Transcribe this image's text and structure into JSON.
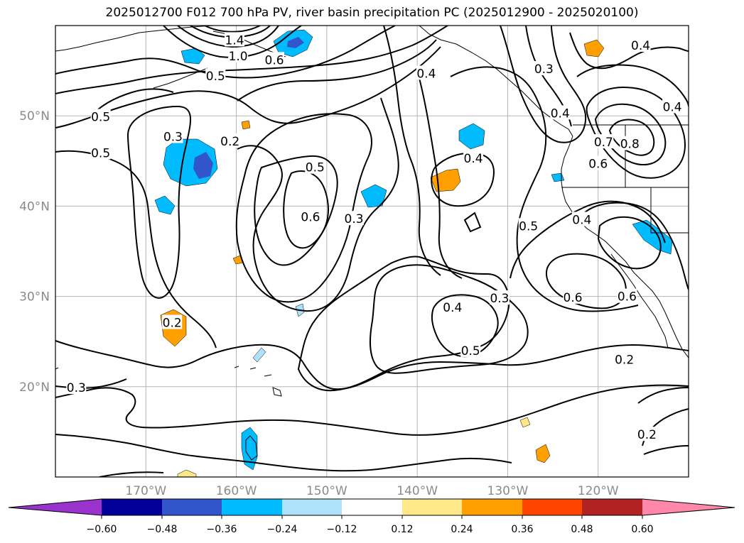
{
  "title": "2025012700 F012 700 hPa PV, river basin precipitation PC (2025012900 - 2025020100)",
  "map": {
    "lon_range": [
      -180,
      -110
    ],
    "lat_range": [
      10,
      60
    ],
    "gridlines": true,
    "lon_ticks": [
      {
        "lon": -170,
        "label": "170°W"
      },
      {
        "lon": -160,
        "label": "160°W"
      },
      {
        "lon": -150,
        "label": "150°W"
      },
      {
        "lon": -140,
        "label": "140°W"
      },
      {
        "lon": -130,
        "label": "130°W"
      },
      {
        "lon": -120,
        "label": "120°W"
      }
    ],
    "lat_ticks": [
      {
        "lat": 20,
        "label": "20°N"
      },
      {
        "lat": 30,
        "label": "30°N"
      },
      {
        "lat": 40,
        "label": "40°N"
      },
      {
        "lat": 50,
        "label": "50°N"
      }
    ],
    "contour_labels": [
      {
        "text": "1.4",
        "lon": -160.2,
        "lat": 58.4
      },
      {
        "text": "1.0",
        "lon": -159.8,
        "lat": 56.6
      },
      {
        "text": "0.6",
        "lon": -155.8,
        "lat": 56.2
      },
      {
        "text": "0.5",
        "lon": -162.3,
        "lat": 54.4
      },
      {
        "text": "0.4",
        "lon": -139.0,
        "lat": 54.7
      },
      {
        "text": "0.4",
        "lon": -115.3,
        "lat": 57.8
      },
      {
        "text": "0.3",
        "lon": -126.0,
        "lat": 55.2
      },
      {
        "text": "0.5",
        "lon": -175.0,
        "lat": 49.9
      },
      {
        "text": "0.5",
        "lon": -175.0,
        "lat": 45.9
      },
      {
        "text": "0.3",
        "lon": -167.0,
        "lat": 47.7
      },
      {
        "text": "0.2",
        "lon": -160.7,
        "lat": 47.2
      },
      {
        "text": "0.5",
        "lon": -151.3,
        "lat": 44.3
      },
      {
        "text": "0.6",
        "lon": -151.8,
        "lat": 38.8
      },
      {
        "text": "0.3",
        "lon": -147.0,
        "lat": 38.6
      },
      {
        "text": "0.4",
        "lon": -133.8,
        "lat": 45.3
      },
      {
        "text": "0.4",
        "lon": -124.2,
        "lat": 50.3
      },
      {
        "text": "0.4",
        "lon": -111.8,
        "lat": 51.0
      },
      {
        "text": "0.7",
        "lon": -119.4,
        "lat": 47.1
      },
      {
        "text": "0.6",
        "lon": -120.0,
        "lat": 44.7
      },
      {
        "text": "0.8",
        "lon": -116.5,
        "lat": 46.9
      },
      {
        "text": "0.5",
        "lon": -127.7,
        "lat": 37.8
      },
      {
        "text": "0.4",
        "lon": -121.8,
        "lat": 38.5
      },
      {
        "text": "0.3",
        "lon": -130.9,
        "lat": 29.8
      },
      {
        "text": "0.4",
        "lon": -136.1,
        "lat": 28.8
      },
      {
        "text": "0.6",
        "lon": -122.8,
        "lat": 29.9
      },
      {
        "text": "0.6",
        "lon": -116.8,
        "lat": 30.0
      },
      {
        "text": "0.5",
        "lon": -134.1,
        "lat": 24.0
      },
      {
        "text": "0.2",
        "lon": -117.1,
        "lat": 23.0
      },
      {
        "text": "0.2",
        "lon": -167.1,
        "lat": 27.1
      },
      {
        "text": "0.3",
        "lon": -177.7,
        "lat": 19.9
      },
      {
        "text": "0.2",
        "lon": -114.6,
        "lat": 14.7
      }
    ]
  },
  "colorbar": {
    "ticks": [
      "−0.60",
      "−0.48",
      "−0.36",
      "−0.24",
      "−0.12",
      "0.12",
      "0.24",
      "0.36",
      "0.48",
      "0.60"
    ],
    "bins": [
      {
        "range": "< -0.60",
        "color": "#9933cc"
      },
      {
        "range": "-0.60 to -0.48",
        "color": "#000099"
      },
      {
        "range": "-0.48 to -0.36",
        "color": "#3355cc"
      },
      {
        "range": "-0.36 to -0.24",
        "color": "#00bbff"
      },
      {
        "range": "-0.24 to -0.12",
        "color": "#aee2fa"
      },
      {
        "range": "-0.12 to 0.12",
        "color": "#ffffff"
      },
      {
        "range": "0.12 to 0.24",
        "color": "#ffe888"
      },
      {
        "range": "0.24 to 0.36",
        "color": "#ffa000"
      },
      {
        "range": "0.36 to 0.48",
        "color": "#ff4400"
      },
      {
        "range": "0.48 to 0.60",
        "color": "#b22222"
      },
      {
        "range": "> 0.60",
        "color": "#ff88aa"
      }
    ]
  }
}
